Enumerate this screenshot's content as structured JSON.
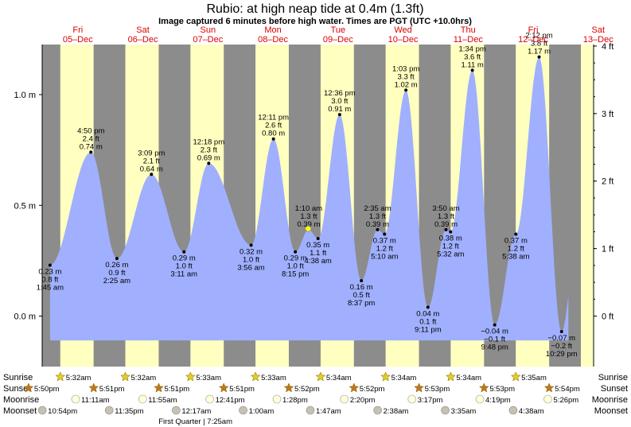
{
  "title": "Rubio: at high  neap tide at 0.4m (1.3ft)",
  "subtitle": "Image captured 6 minutes before high water. Times are PGT (UTC +10.0hrs)",
  "days": [
    {
      "dow": "Fri",
      "date": "05–Dec"
    },
    {
      "dow": "Sat",
      "date": "06–Dec"
    },
    {
      "dow": "Sun",
      "date": "07–Dec"
    },
    {
      "dow": "Mon",
      "date": "08–Dec"
    },
    {
      "dow": "Tue",
      "date": "09–Dec"
    },
    {
      "dow": "Wed",
      "date": "10–Dec"
    },
    {
      "dow": "Thu",
      "date": "11–Dec"
    },
    {
      "dow": "Fri",
      "date": "12–Dec"
    },
    {
      "dow": "Sat",
      "date": "13–Dec"
    }
  ],
  "y_left_labels": [
    "1.0 m",
    "0.5 m",
    "0.0 m"
  ],
  "y_right_labels": [
    "4 ft",
    "3 ft",
    "2 ft",
    "1 ft",
    "0 ft"
  ],
  "chart_data": {
    "type": "area",
    "title": "Rubio: at high  neap tide at 0.4m (1.3ft)",
    "x_unit": "hours from 00:00 Fri 05-Dec",
    "ylabel_left": "m",
    "ylabel_right": "ft",
    "ylim_m": [
      -0.19,
      1.3
    ],
    "y_ticks_m": [
      0.0,
      0.5,
      1.0
    ],
    "y_ticks_ft": [
      0,
      1,
      2,
      3,
      4
    ],
    "tide_events": [
      {
        "h": 1.75,
        "m": 0.23,
        "lines": [
          "0.23 m",
          "0.8 ft",
          "1:45 am"
        ],
        "pos": "below"
      },
      {
        "h": 16.83,
        "m": 0.74,
        "lines": [
          "4:50 pm",
          "2.4 ft",
          "0.74 m"
        ],
        "pos": "above"
      },
      {
        "h": 26.42,
        "m": 0.26,
        "lines": [
          "0.26 m",
          "0.9 ft",
          "2:25 am"
        ],
        "pos": "below"
      },
      {
        "h": 39.15,
        "m": 0.64,
        "lines": [
          "3:09 pm",
          "2.1 ft",
          "0.64 m"
        ],
        "pos": "above"
      },
      {
        "h": 51.18,
        "m": 0.29,
        "lines": [
          "0.29 m",
          "1.0 ft",
          "3:11 am"
        ],
        "pos": "below"
      },
      {
        "h": 60.3,
        "m": 0.69,
        "lines": [
          "12:18 pm",
          "2.3 ft",
          "0.69 m"
        ],
        "pos": "above"
      },
      {
        "h": 75.93,
        "m": 0.32,
        "lines": [
          "0.32 m",
          "1.0 ft",
          "3:56 am"
        ],
        "pos": "below"
      },
      {
        "h": 84.18,
        "m": 0.8,
        "lines": [
          "12:11 pm",
          "2.6 ft",
          "0.80 m"
        ],
        "pos": "above"
      },
      {
        "h": 92.25,
        "m": 0.29,
        "lines": [
          "0.29 m",
          "1.0 ft",
          "8:15 pm"
        ],
        "pos": "below"
      },
      {
        "h": 97.17,
        "m": 0.39,
        "lines": [
          "1:10 am",
          "1.3 ft",
          "0.39 m"
        ],
        "pos": "above"
      },
      {
        "h": 100.63,
        "m": 0.35,
        "lines": [
          "0.35 m",
          "1.1 ft",
          "4:38 am"
        ],
        "pos": "below"
      },
      {
        "h": 108.6,
        "m": 0.91,
        "lines": [
          "12:36 pm",
          "3.0 ft",
          "0.91 m"
        ],
        "pos": "above"
      },
      {
        "h": 116.62,
        "m": 0.16,
        "lines": [
          "0.16 m",
          "0.5 ft",
          "8:37 pm"
        ],
        "pos": "below"
      },
      {
        "h": 122.58,
        "m": 0.39,
        "lines": [
          "2:35 am",
          "1.3 ft",
          "0.39 m"
        ],
        "pos": "above"
      },
      {
        "h": 125.17,
        "m": 0.37,
        "lines": [
          "0.37 m",
          "1.2 ft",
          "5:10 am"
        ],
        "pos": "below"
      },
      {
        "h": 133.05,
        "m": 1.02,
        "lines": [
          "1:03 pm",
          "3.3 ft",
          "1.02 m"
        ],
        "pos": "above"
      },
      {
        "h": 141.18,
        "m": 0.04,
        "lines": [
          "0.04 m",
          "0.1 ft",
          "9:11 pm"
        ],
        "pos": "below"
      },
      {
        "h": 147.83,
        "m": 0.39,
        "lines": [
          "3:50 am",
          "1.3 ft",
          "0.39 m"
        ],
        "pos": "above"
      },
      {
        "h": 149.53,
        "m": 0.38,
        "lines": [
          "0.38 m",
          "1.2 ft",
          "5:32 am"
        ],
        "pos": "below"
      },
      {
        "h": 157.57,
        "m": 1.11,
        "lines": [
          "1:34 pm",
          "3.6 ft",
          "1.11 m"
        ],
        "pos": "above"
      },
      {
        "h": 165.8,
        "m": -0.04,
        "lines": [
          "−0.04 m",
          "−0.1 ft",
          "9:48 pm"
        ],
        "pos": "below"
      },
      {
        "h": 173.63,
        "m": 0.37,
        "lines": [
          "0.37 m",
          "1.2 ft",
          "5:38 am"
        ],
        "pos": "below"
      },
      {
        "h": 182.2,
        "m": 1.17,
        "lines": [
          "2:12 pm",
          "3.8 ft",
          "1.17 m"
        ],
        "pos": "above"
      },
      {
        "h": 190.48,
        "m": -0.07,
        "lines": [
          "−0.07 m",
          "−0.2 ft",
          "10:29 pm"
        ],
        "pos": "below"
      }
    ],
    "daylight": [
      {
        "rise_h": 5.53,
        "set_h": 17.83
      },
      {
        "rise_h": 29.53,
        "set_h": 41.85
      },
      {
        "rise_h": 53.55,
        "set_h": 65.85
      },
      {
        "rise_h": 77.55,
        "set_h": 89.85
      },
      {
        "rise_h": 101.57,
        "set_h": 113.87
      },
      {
        "rise_h": 125.57,
        "set_h": 137.87
      },
      {
        "rise_h": 149.57,
        "set_h": 161.88
      },
      {
        "rise_h": 173.58,
        "set_h": 185.9
      }
    ]
  },
  "legend_rows": {
    "sunrise": "Sunrise",
    "sunset": "Sunset",
    "moonrise": "Moonrise",
    "moonset": "Moonset"
  },
  "sunrise_events": [
    {
      "h": 5.53,
      "text": "5:32am"
    },
    {
      "h": 29.53,
      "text": "5:32am"
    },
    {
      "h": 53.55,
      "text": "5:33am"
    },
    {
      "h": 77.55,
      "text": "5:33am"
    },
    {
      "h": 101.57,
      "text": "5:34am"
    },
    {
      "h": 125.57,
      "text": "5:34am"
    },
    {
      "h": 149.57,
      "text": "5:34am"
    },
    {
      "h": 173.58,
      "text": "5:35am"
    }
  ],
  "sunset_events": [
    {
      "h": -6.17,
      "text": "5:50pm"
    },
    {
      "h": 17.85,
      "text": "5:51pm"
    },
    {
      "h": 41.85,
      "text": "5:51pm"
    },
    {
      "h": 65.85,
      "text": "5:51pm"
    },
    {
      "h": 89.87,
      "text": "5:52pm"
    },
    {
      "h": 113.87,
      "text": "5:52pm"
    },
    {
      "h": 137.88,
      "text": "5:53pm"
    },
    {
      "h": 161.88,
      "text": "5:53pm"
    },
    {
      "h": 185.9,
      "text": "5:54pm"
    }
  ],
  "moonrise_events": [
    {
      "h": 11.18,
      "text": "11:11am"
    },
    {
      "h": 35.92,
      "text": "11:55am"
    },
    {
      "h": 60.68,
      "text": "12:41pm"
    },
    {
      "h": 85.47,
      "text": "1:28pm"
    },
    {
      "h": 110.33,
      "text": "2:20pm"
    },
    {
      "h": 135.28,
      "text": "3:17pm"
    },
    {
      "h": 160.32,
      "text": "4:19pm"
    },
    {
      "h": 185.43,
      "text": "5:26pm"
    }
  ],
  "moonset_events": [
    {
      "h": -1.1,
      "text": "10:54pm"
    },
    {
      "h": 23.58,
      "text": "11:35pm"
    },
    {
      "h": 48.28,
      "text": "12:17am"
    },
    {
      "h": 73.0,
      "text": "1:00am"
    },
    {
      "h": 97.78,
      "text": "1:47am"
    },
    {
      "h": 122.63,
      "text": "2:38am"
    },
    {
      "h": 147.58,
      "text": "3:35am"
    },
    {
      "h": 172.63,
      "text": "4:38am"
    }
  ],
  "moon_phase": {
    "h": 55.4,
    "text": "First Quarter | 7:25am"
  },
  "colors": {
    "night": "#8c8c8c",
    "day": "#ffffc0",
    "water": "#a0b0ff",
    "title_day": "#dd0000",
    "sun_star": "#e0d020",
    "sunset_star": "#c07818",
    "moonrise_circle": "#ffffd8",
    "moonset_circle": "#c8c0b0",
    "marker_highlight": "#ffff00"
  }
}
